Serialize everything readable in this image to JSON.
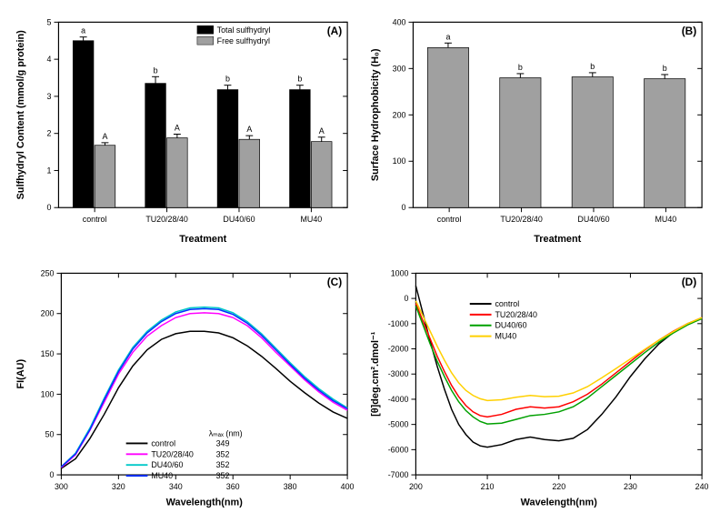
{
  "panelA": {
    "label": "(A)",
    "type": "bar",
    "xlabel": "Treatment",
    "ylabel": "Sulfhydryl Content (mmol/g protein)",
    "categories": [
      "control",
      "TU20/28/40",
      "DU40/60",
      "MU40"
    ],
    "series": [
      {
        "name": "Total sulfhydryl",
        "color": "#000000",
        "values": [
          4.5,
          3.35,
          3.18,
          3.18
        ],
        "err": [
          0.1,
          0.18,
          0.12,
          0.12
        ],
        "notes": [
          "a",
          "b",
          "b",
          "b"
        ]
      },
      {
        "name": "Free sulfhydryl",
        "color": "#a0a0a0",
        "values": [
          1.68,
          1.88,
          1.84,
          1.78
        ],
        "err": [
          0.07,
          0.1,
          0.1,
          0.12
        ],
        "notes": [
          "A",
          "A",
          "A",
          "A"
        ]
      }
    ],
    "ylim": [
      0,
      5
    ],
    "ytick_step": 1,
    "label_fontsize": 11,
    "tick_fontsize": 9,
    "note_fontsize": 9,
    "axis_color": "#000000",
    "bg": "#ffffff"
  },
  "panelB": {
    "label": "(B)",
    "type": "bar",
    "xlabel": "Treatment",
    "ylabel": "Surface Hydrophobicity (H₀)",
    "categories": [
      "control",
      "TU20/28/40",
      "DU40/60",
      "MU40"
    ],
    "series": [
      {
        "name": "",
        "color": "#a0a0a0",
        "values": [
          345,
          280,
          282,
          278
        ],
        "err": [
          10,
          9,
          9,
          9
        ],
        "notes": [
          "a",
          "b",
          "b",
          "b"
        ]
      }
    ],
    "ylim": [
      0,
      400
    ],
    "ytick_step": 100,
    "label_fontsize": 11,
    "tick_fontsize": 9,
    "note_fontsize": 9,
    "axis_color": "#000000",
    "bg": "#ffffff"
  },
  "panelC": {
    "label": "(C)",
    "type": "line",
    "xlabel": "Wavelength(nm)",
    "ylabel": "FI(AU)",
    "xlim": [
      300,
      400
    ],
    "xtick_step": 20,
    "ylim": [
      0,
      250
    ],
    "ytick_step": 50,
    "legend_title": "",
    "lambda_label": "λₘₐₓ (nm)",
    "lines": [
      {
        "name": "control",
        "color": "#000000",
        "lambda": "349",
        "pts": [
          [
            300,
            8
          ],
          [
            305,
            20
          ],
          [
            310,
            45
          ],
          [
            315,
            75
          ],
          [
            320,
            108
          ],
          [
            325,
            135
          ],
          [
            330,
            155
          ],
          [
            335,
            168
          ],
          [
            340,
            175
          ],
          [
            345,
            178
          ],
          [
            350,
            178
          ],
          [
            355,
            176
          ],
          [
            360,
            170
          ],
          [
            365,
            160
          ],
          [
            370,
            147
          ],
          [
            375,
            132
          ],
          [
            380,
            116
          ],
          [
            385,
            102
          ],
          [
            390,
            89
          ],
          [
            395,
            78
          ],
          [
            400,
            70
          ]
        ]
      },
      {
        "name": "TU20/28/40",
        "color": "#ff00ff",
        "lambda": "352",
        "pts": [
          [
            300,
            9
          ],
          [
            305,
            25
          ],
          [
            310,
            55
          ],
          [
            315,
            90
          ],
          [
            320,
            125
          ],
          [
            325,
            152
          ],
          [
            330,
            172
          ],
          [
            335,
            185
          ],
          [
            340,
            195
          ],
          [
            345,
            200
          ],
          [
            350,
            201
          ],
          [
            355,
            200
          ],
          [
            360,
            195
          ],
          [
            365,
            185
          ],
          [
            370,
            170
          ],
          [
            375,
            152
          ],
          [
            380,
            135
          ],
          [
            385,
            118
          ],
          [
            390,
            103
          ],
          [
            395,
            90
          ],
          [
            400,
            80
          ]
        ]
      },
      {
        "name": "DU40/60",
        "color": "#00c8c8",
        "lambda": "352",
        "pts": [
          [
            300,
            10
          ],
          [
            305,
            27
          ],
          [
            310,
            58
          ],
          [
            315,
            95
          ],
          [
            320,
            130
          ],
          [
            325,
            158
          ],
          [
            330,
            178
          ],
          [
            335,
            192
          ],
          [
            340,
            202
          ],
          [
            345,
            207
          ],
          [
            350,
            208
          ],
          [
            355,
            207
          ],
          [
            360,
            201
          ],
          [
            365,
            190
          ],
          [
            370,
            175
          ],
          [
            375,
            157
          ],
          [
            380,
            139
          ],
          [
            385,
            122
          ],
          [
            390,
            107
          ],
          [
            395,
            94
          ],
          [
            400,
            83
          ]
        ]
      },
      {
        "name": "MU40",
        "color": "#0030ff",
        "lambda": "352",
        "pts": [
          [
            300,
            10
          ],
          [
            305,
            26
          ],
          [
            310,
            56
          ],
          [
            315,
            93
          ],
          [
            320,
            128
          ],
          [
            325,
            156
          ],
          [
            330,
            176
          ],
          [
            335,
            190
          ],
          [
            340,
            200
          ],
          [
            345,
            205
          ],
          [
            350,
            206
          ],
          [
            355,
            205
          ],
          [
            360,
            199
          ],
          [
            365,
            188
          ],
          [
            370,
            173
          ],
          [
            375,
            155
          ],
          [
            380,
            137
          ],
          [
            385,
            120
          ],
          [
            390,
            105
          ],
          [
            395,
            92
          ],
          [
            400,
            82
          ]
        ]
      }
    ],
    "label_fontsize": 11,
    "tick_fontsize": 9,
    "axis_color": "#000000",
    "bg": "#ffffff",
    "line_width": 1.5
  },
  "panelD": {
    "label": "(D)",
    "type": "line",
    "xlabel": "Wavelength(nm)",
    "ylabel": "[θ]deg.cm².dmol⁻¹",
    "xlim": [
      200,
      240
    ],
    "xtick_step": 10,
    "ylim": [
      -7000,
      1000
    ],
    "ytick_step": 1000,
    "lines": [
      {
        "name": "control",
        "color": "#000000",
        "pts": [
          [
            200,
            500
          ],
          [
            201,
            -600
          ],
          [
            202,
            -1700
          ],
          [
            203,
            -2700
          ],
          [
            204,
            -3600
          ],
          [
            205,
            -4400
          ],
          [
            206,
            -5000
          ],
          [
            207,
            -5400
          ],
          [
            208,
            -5700
          ],
          [
            209,
            -5850
          ],
          [
            210,
            -5900
          ],
          [
            212,
            -5800
          ],
          [
            214,
            -5600
          ],
          [
            216,
            -5500
          ],
          [
            218,
            -5600
          ],
          [
            220,
            -5650
          ],
          [
            222,
            -5550
          ],
          [
            224,
            -5200
          ],
          [
            226,
            -4600
          ],
          [
            228,
            -3900
          ],
          [
            230,
            -3100
          ],
          [
            232,
            -2400
          ],
          [
            234,
            -1800
          ],
          [
            236,
            -1350
          ],
          [
            238,
            -1000
          ],
          [
            240,
            -780
          ]
        ]
      },
      {
        "name": "TU20/28/40",
        "color": "#ff0000",
        "pts": [
          [
            200,
            -200
          ],
          [
            201,
            -900
          ],
          [
            202,
            -1600
          ],
          [
            203,
            -2300
          ],
          [
            204,
            -2900
          ],
          [
            205,
            -3450
          ],
          [
            206,
            -3900
          ],
          [
            207,
            -4250
          ],
          [
            208,
            -4500
          ],
          [
            209,
            -4650
          ],
          [
            210,
            -4700
          ],
          [
            212,
            -4600
          ],
          [
            214,
            -4400
          ],
          [
            216,
            -4300
          ],
          [
            218,
            -4350
          ],
          [
            220,
            -4300
          ],
          [
            222,
            -4100
          ],
          [
            224,
            -3800
          ],
          [
            226,
            -3400
          ],
          [
            228,
            -2950
          ],
          [
            230,
            -2500
          ],
          [
            232,
            -2050
          ],
          [
            234,
            -1650
          ],
          [
            236,
            -1300
          ],
          [
            238,
            -1000
          ],
          [
            240,
            -760
          ]
        ]
      },
      {
        "name": "DU40/60",
        "color": "#00a000",
        "pts": [
          [
            200,
            -300
          ],
          [
            201,
            -1050
          ],
          [
            202,
            -1800
          ],
          [
            203,
            -2500
          ],
          [
            204,
            -3100
          ],
          [
            205,
            -3650
          ],
          [
            206,
            -4100
          ],
          [
            207,
            -4450
          ],
          [
            208,
            -4700
          ],
          [
            209,
            -4880
          ],
          [
            210,
            -4980
          ],
          [
            212,
            -4950
          ],
          [
            214,
            -4800
          ],
          [
            216,
            -4650
          ],
          [
            218,
            -4600
          ],
          [
            220,
            -4500
          ],
          [
            222,
            -4300
          ],
          [
            224,
            -3950
          ],
          [
            226,
            -3500
          ],
          [
            228,
            -3050
          ],
          [
            230,
            -2600
          ],
          [
            232,
            -2150
          ],
          [
            234,
            -1730
          ],
          [
            236,
            -1370
          ],
          [
            238,
            -1050
          ],
          [
            240,
            -800
          ]
        ]
      },
      {
        "name": "MU40",
        "color": "#ffd000",
        "pts": [
          [
            200,
            -100
          ],
          [
            201,
            -700
          ],
          [
            202,
            -1300
          ],
          [
            203,
            -1900
          ],
          [
            204,
            -2450
          ],
          [
            205,
            -2950
          ],
          [
            206,
            -3350
          ],
          [
            207,
            -3650
          ],
          [
            208,
            -3850
          ],
          [
            209,
            -3980
          ],
          [
            210,
            -4050
          ],
          [
            212,
            -4020
          ],
          [
            214,
            -3920
          ],
          [
            216,
            -3850
          ],
          [
            218,
            -3900
          ],
          [
            220,
            -3880
          ],
          [
            222,
            -3750
          ],
          [
            224,
            -3500
          ],
          [
            226,
            -3150
          ],
          [
            228,
            -2780
          ],
          [
            230,
            -2400
          ],
          [
            232,
            -2020
          ],
          [
            234,
            -1650
          ],
          [
            236,
            -1320
          ],
          [
            238,
            -1000
          ],
          [
            240,
            -760
          ]
        ]
      }
    ],
    "label_fontsize": 11,
    "tick_fontsize": 9,
    "axis_color": "#000000",
    "bg": "#ffffff",
    "line_width": 1.5
  }
}
